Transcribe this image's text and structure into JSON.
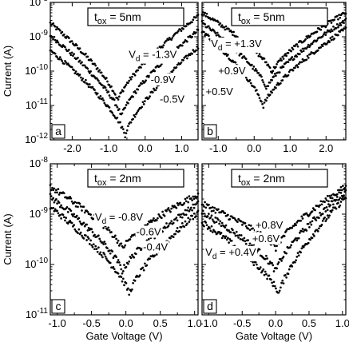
{
  "chart_data": [
    {
      "type": "scatter",
      "panel_label": "a",
      "box_text": "t",
      "box_sub": "ox",
      "box_rest": " = 5nm",
      "xlim": [
        -2.6,
        1.45
      ],
      "ylog": true,
      "ylim": [
        1e-12,
        1e-08
      ],
      "xticks": [
        -2.0,
        -1.0,
        0.0,
        1.0
      ],
      "xtick_labels": [
        "-2.0",
        "-1.0",
        "0.0",
        "1.0"
      ],
      "yticks": [
        1e-12,
        1e-11,
        1e-10,
        1e-09,
        1e-08
      ],
      "ytick_bases": [
        "10",
        "10",
        "10",
        "10",
        "10"
      ],
      "ytick_exps": [
        "-12",
        "-11",
        "-10",
        "-9",
        "-8"
      ],
      "ylabel": "Current (A)",
      "xlabel": "",
      "annotations": [
        {
          "main": "V",
          "sub": "d",
          "rest": " = -1.3V",
          "x": -0.45,
          "y": 2.4e-10
        },
        {
          "main": "-0.9V",
          "sub": "",
          "rest": "",
          "x": 0.15,
          "y": 4.5e-11
        },
        {
          "main": "-0.5V",
          "sub": "",
          "rest": "",
          "x": 0.4,
          "y": 1.2e-11
        }
      ],
      "series": [
        {
          "min_x": -0.75,
          "min_y": 1.3e-11,
          "left_x": -2.6,
          "left_y": 2.5e-09,
          "right_x": 1.45,
          "right_y": 4e-09
        },
        {
          "min_x": -0.65,
          "min_y": 4.5e-12,
          "left_x": -2.6,
          "left_y": 1.1e-09,
          "right_x": 1.45,
          "right_y": 1.5e-09
        },
        {
          "min_x": -0.55,
          "min_y": 1.3e-12,
          "left_x": -2.6,
          "left_y": 4e-10,
          "right_x": 1.45,
          "right_y": 5e-10
        }
      ]
    },
    {
      "type": "scatter",
      "panel_label": "b",
      "box_text": "t",
      "box_sub": "ox",
      "box_rest": " = 5nm",
      "xlim": [
        -1.45,
        2.55
      ],
      "ylog": true,
      "ylim": [
        1e-12,
        1e-08
      ],
      "xticks": [
        -1.0,
        0.0,
        1.0,
        2.0
      ],
      "xtick_labels": [
        "-1.0",
        "0.0",
        "1.0",
        "2.0"
      ],
      "yticks": [],
      "ytick_bases": [],
      "ytick_exps": [],
      "ylabel": "",
      "xlabel": "",
      "annotations": [
        {
          "main": "V",
          "sub": "d",
          "rest": " = +1.3V",
          "x": -1.2,
          "y": 5e-10
        },
        {
          "main": "+0.9V",
          "sub": "",
          "rest": "",
          "x": -1.0,
          "y": 8e-11
        },
        {
          "main": "+0.5V",
          "sub": "",
          "rest": "",
          "x": -1.35,
          "y": 2e-11
        }
      ],
      "series": [
        {
          "min_x": 0.5,
          "min_y": 9e-11,
          "left_x": -1.45,
          "left_y": 5e-09,
          "right_x": 2.55,
          "right_y": 5e-09
        },
        {
          "min_x": 0.35,
          "min_y": 3e-11,
          "left_x": -1.45,
          "left_y": 2.5e-09,
          "right_x": 2.55,
          "right_y": 3e-09
        },
        {
          "min_x": 0.25,
          "min_y": 9e-12,
          "left_x": -1.45,
          "left_y": 1.5e-09,
          "right_x": 2.55,
          "right_y": 1.7e-09
        }
      ]
    },
    {
      "type": "scatter",
      "panel_label": "c",
      "box_text": "t",
      "box_sub": "ox",
      "box_rest": " = 2nm",
      "xlim": [
        -1.1,
        1.05
      ],
      "ylog": true,
      "ylim": [
        1e-11,
        1e-08
      ],
      "xticks": [
        -1.0,
        -0.5,
        0.0,
        0.5,
        1.0
      ],
      "xtick_labels": [
        "-1.0",
        "-0.5",
        "0.0",
        "0.5",
        "1.0"
      ],
      "yticks": [
        1e-11,
        1e-10,
        1e-09,
        1e-08
      ],
      "ytick_bases": [
        "10",
        "10",
        "10",
        "10"
      ],
      "ytick_exps": [
        "-11",
        "-10",
        "-9",
        "-8"
      ],
      "ylabel": "Current (A)",
      "xlabel": "Gate Voltage (V)",
      "annotations": [
        {
          "main": "V",
          "sub": "d",
          "rest": " = -0.8V",
          "x": -0.45,
          "y": 7.5e-10
        },
        {
          "main": "-0.6V",
          "sub": "",
          "rest": "",
          "x": 0.15,
          "y": 3.8e-10
        },
        {
          "main": "-0.4V",
          "sub": "",
          "rest": "",
          "x": 0.25,
          "y": 1.9e-10
        }
      ],
      "series": [
        {
          "min_x": -0.05,
          "min_y": 2e-10,
          "left_x": -1.1,
          "left_y": 3.5e-09,
          "right_x": 1.05,
          "right_y": 2.5e-09
        },
        {
          "min_x": -0.05,
          "min_y": 7e-11,
          "left_x": -1.1,
          "left_y": 2.2e-09,
          "right_x": 1.05,
          "right_y": 1.6e-09
        },
        {
          "min_x": 0.05,
          "min_y": 2.5e-11,
          "left_x": -1.1,
          "left_y": 1.4e-09,
          "right_x": 1.05,
          "right_y": 1.1e-09
        }
      ]
    },
    {
      "type": "scatter",
      "panel_label": "d",
      "box_text": "t",
      "box_sub": "ox",
      "box_rest": " = 2nm",
      "xlim": [
        -1.1,
        1.05
      ],
      "ylog": true,
      "ylim": [
        1e-11,
        1e-08
      ],
      "xticks": [
        -1.0,
        -0.5,
        0.0,
        0.5,
        1.0
      ],
      "xtick_labels": [
        "-1.0",
        "-0.5",
        "0.0",
        "0.5",
        "1.0"
      ],
      "yticks": [],
      "ytick_bases": [],
      "ytick_exps": [],
      "ylabel": "",
      "xlabel": "Gate Voltage (V)",
      "annotations": [
        {
          "main": "+0.8V",
          "sub": "",
          "rest": "",
          "x": -0.3,
          "y": 5.2e-10
        },
        {
          "main": "+0.6V",
          "sub": "",
          "rest": "",
          "x": -0.35,
          "y": 2.8e-10
        },
        {
          "main": "V",
          "sub": "d",
          "rest": " = +0.4V",
          "x": -1.05,
          "y": 1.5e-10
        }
      ],
      "series": [
        {
          "min_x": 0.0,
          "min_y": 2e-10,
          "left_x": -1.1,
          "left_y": 1.6e-09,
          "right_x": 1.05,
          "right_y": 3.5e-09
        },
        {
          "min_x": 0.0,
          "min_y": 7e-11,
          "left_x": -1.1,
          "left_y": 1.1e-09,
          "right_x": 1.05,
          "right_y": 2.8e-09
        },
        {
          "min_x": 0.05,
          "min_y": 2.5e-11,
          "left_x": -1.1,
          "left_y": 7e-10,
          "right_x": 1.05,
          "right_y": 2.2e-09
        }
      ]
    }
  ]
}
